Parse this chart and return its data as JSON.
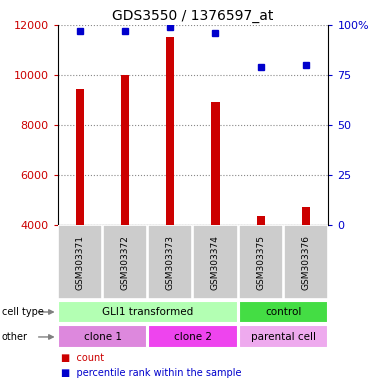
{
  "title": "GDS3550 / 1376597_at",
  "samples": [
    "GSM303371",
    "GSM303372",
    "GSM303373",
    "GSM303374",
    "GSM303375",
    "GSM303376"
  ],
  "counts": [
    9450,
    9980,
    11500,
    8900,
    4350,
    4700
  ],
  "percentile_ranks": [
    97,
    97,
    99,
    96,
    79,
    80
  ],
  "ylim_left": [
    4000,
    12000
  ],
  "ylim_right": [
    0,
    100
  ],
  "left_ticks": [
    4000,
    6000,
    8000,
    10000,
    12000
  ],
  "right_ticks": [
    0,
    25,
    50,
    75,
    100
  ],
  "right_tick_labels": [
    "0",
    "25",
    "50",
    "75",
    "100%"
  ],
  "bar_color": "#cc0000",
  "dot_color": "#0000cc",
  "cell_type_groups": [
    {
      "label": "GLI1 transformed",
      "start": 0,
      "end": 4,
      "color": "#b3ffb3"
    },
    {
      "label": "control",
      "start": 4,
      "end": 6,
      "color": "#44dd44"
    }
  ],
  "other_groups": [
    {
      "label": "clone 1",
      "start": 0,
      "end": 2,
      "color": "#dd88dd"
    },
    {
      "label": "clone 2",
      "start": 2,
      "end": 4,
      "color": "#ee44ee"
    },
    {
      "label": "parental cell",
      "start": 4,
      "end": 6,
      "color": "#eeaaee"
    }
  ],
  "tick_label_color_left": "#cc0000",
  "tick_label_color_right": "#0000cc",
  "grid_color": "#888888",
  "sample_bg_color": "#cccccc",
  "legend_count_label": "count",
  "legend_pct_label": "percentile rank within the sample",
  "bar_width": 0.18,
  "dot_size": 5
}
